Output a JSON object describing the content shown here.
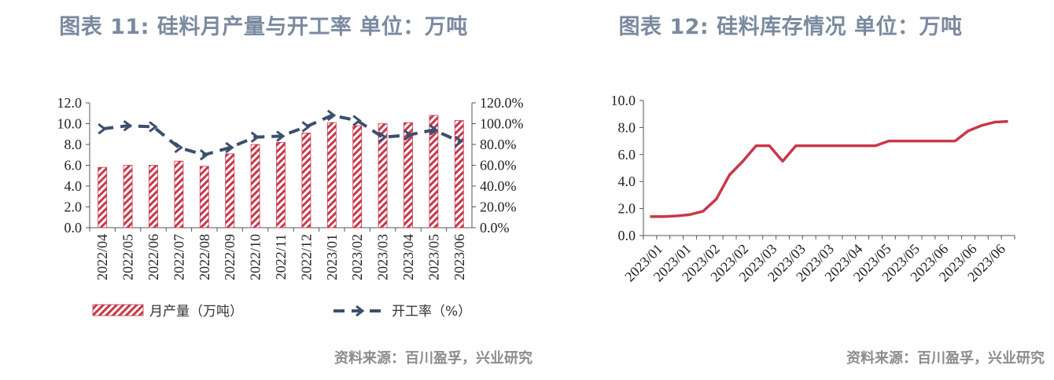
{
  "left": {
    "title": "图表 11: 硅料月产量与开工率  单位：万吨",
    "source": "资料来源：百川盈孚，兴业研究"
  },
  "right": {
    "title": "图表 12: 硅料库存情况  单位：万吨",
    "source": "资料来源：百川盈孚，兴业研究"
  },
  "chart_data": [
    {
      "type": "bar",
      "title": "图表 11: 硅料月产量与开工率  单位：万吨",
      "categories": [
        "2022/04",
        "2022/05",
        "2022/06",
        "2022/07",
        "2022/08",
        "2022/09",
        "2022/10",
        "2022/11",
        "2022/12",
        "2023/01",
        "2023/02",
        "2023/03",
        "2023/04",
        "2023/05",
        "2023/06"
      ],
      "ylim": [
        0,
        12
      ],
      "y_ticks": [
        "12.0",
        "10.0",
        "8.0",
        "6.0",
        "4.0",
        "2.0",
        "0.0"
      ],
      "y2lim": [
        0,
        120
      ],
      "y2_ticks": [
        "120.0%",
        "100.0%",
        "80.0%",
        "60.0%",
        "40.0%",
        "20.0%",
        "0.0%"
      ],
      "legend_position": "bottom",
      "grid": false,
      "colors": {
        "bar": "#c8384a",
        "line": "#3d4f6e"
      },
      "series": [
        {
          "name": "月产量（万吨）",
          "type": "bar",
          "axis": "left",
          "values": [
            5.8,
            6.0,
            6.0,
            6.4,
            5.9,
            7.1,
            8.0,
            8.2,
            9.1,
            10.1,
            9.8,
            10.0,
            10.1,
            10.8,
            10.3
          ]
        },
        {
          "name": "开工率（%）",
          "type": "line",
          "axis": "right",
          "style": "dashed",
          "values": [
            95,
            98,
            97,
            77,
            70,
            77,
            87,
            88,
            97,
            108,
            103,
            87,
            89,
            94,
            83
          ]
        }
      ]
    },
    {
      "type": "line",
      "title": "图表 12: 硅料库存情况  单位：万吨",
      "tick_labels": [
        "2023/01",
        "2023/01",
        "2023/02",
        "2023/02",
        "2023/03",
        "2023/03",
        "2023/03",
        "2023/04",
        "2023/05",
        "2023/05",
        "2023/06",
        "2023/06",
        "2023/06"
      ],
      "ylim": [
        0,
        10
      ],
      "y_ticks": [
        "10.0",
        "8.0",
        "6.0",
        "4.0",
        "2.0",
        "0.0"
      ],
      "grid": false,
      "colors": {
        "line": "#c8384a"
      },
      "series": [
        {
          "values": [
            1.4,
            1.4,
            1.45,
            1.55,
            1.8,
            2.7,
            4.5,
            5.5,
            6.65,
            6.65,
            5.5,
            6.65,
            6.65,
            6.65,
            6.65,
            6.65,
            6.65,
            6.65,
            7.0,
            7.0,
            7.0,
            7.0,
            7.0,
            7.0,
            7.75,
            8.15,
            8.4,
            8.45
          ]
        }
      ]
    }
  ]
}
